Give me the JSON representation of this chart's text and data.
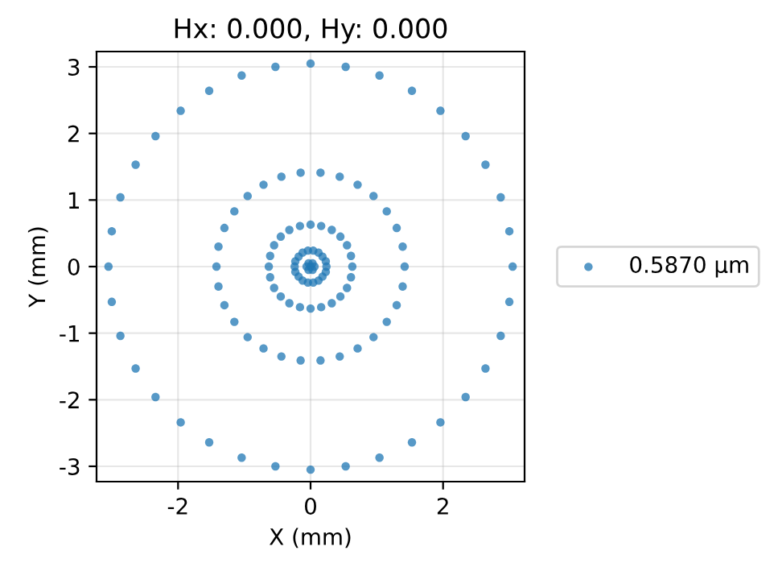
{
  "chart_data": {
    "type": "scatter",
    "title": "Hx: 0.000, Hy: 0.000",
    "xlabel": "X (mm)",
    "ylabel": "Y (mm)",
    "xlim": [
      -3.23,
      3.23
    ],
    "ylim": [
      -3.23,
      3.23
    ],
    "xticks": [
      -2,
      0,
      2
    ],
    "yticks": [
      -3,
      -2,
      -1,
      0,
      1,
      2,
      3
    ],
    "grid": true,
    "legend": "right",
    "marker": "circle",
    "series": [
      {
        "name": "0.5870 µm",
        "color": "#1f77b4",
        "x": [
          3.05,
          3.0,
          2.87,
          2.64,
          2.34,
          1.96,
          1.53,
          1.04,
          0.53,
          0,
          -0.53,
          -1.04,
          -1.53,
          -1.96,
          -2.34,
          -2.64,
          -2.87,
          -3.0,
          -3.05,
          -3.0,
          -2.87,
          -2.64,
          -2.34,
          -1.96,
          -1.53,
          -1.04,
          -0.53,
          0,
          0.53,
          1.04,
          1.53,
          1.96,
          2.34,
          2.64,
          2.87,
          3.0,
          1.42,
          1.39,
          1.3,
          1.15,
          0.95,
          0.71,
          0.44,
          0.15,
          -0.15,
          -0.44,
          -0.71,
          -0.95,
          -1.15,
          -1.3,
          -1.39,
          -1.42,
          -1.39,
          -1.3,
          -1.15,
          -0.95,
          -0.71,
          -0.44,
          -0.15,
          0.15,
          0.44,
          0.71,
          0.95,
          1.15,
          1.3,
          1.39,
          0.63,
          0.61,
          0.55,
          0.45,
          0.32,
          0.16,
          0,
          -0.16,
          -0.32,
          -0.45,
          -0.55,
          -0.61,
          -0.63,
          -0.61,
          -0.55,
          -0.45,
          -0.32,
          -0.16,
          0,
          0.16,
          0.32,
          0.45,
          0.55,
          0.61,
          0.24,
          0.23,
          0.18,
          0.12,
          0.04,
          -0.04,
          -0.12,
          -0.18,
          -0.23,
          -0.24,
          -0.23,
          -0.18,
          -0.12,
          -0.04,
          0.04,
          0.12,
          0.18,
          0.23,
          0,
          0.06,
          0.03,
          -0.03,
          -0.06,
          -0.03,
          0.03
        ],
        "values": [
          0,
          0.53,
          1.04,
          1.53,
          1.96,
          2.34,
          2.64,
          2.87,
          3.0,
          3.05,
          3.0,
          2.87,
          2.64,
          2.34,
          1.96,
          1.53,
          1.04,
          0.53,
          0,
          -0.53,
          -1.04,
          -1.53,
          -1.96,
          -2.34,
          -2.64,
          -2.87,
          -3.0,
          -3.05,
          -3.0,
          -2.87,
          -2.64,
          -2.34,
          -1.96,
          -1.53,
          -1.04,
          -0.53,
          0,
          0.3,
          0.58,
          0.83,
          1.06,
          1.23,
          1.35,
          1.41,
          1.41,
          1.35,
          1.23,
          1.06,
          0.83,
          0.58,
          0.3,
          0,
          -0.3,
          -0.58,
          -0.83,
          -1.06,
          -1.23,
          -1.35,
          -1.41,
          -1.41,
          -1.35,
          -1.23,
          -1.06,
          -0.83,
          -0.58,
          -0.3,
          0,
          0.16,
          0.32,
          0.45,
          0.55,
          0.61,
          0.63,
          0.61,
          0.55,
          0.45,
          0.32,
          0.16,
          0,
          -0.16,
          -0.32,
          -0.45,
          -0.55,
          -0.61,
          -0.63,
          -0.61,
          -0.55,
          -0.45,
          -0.32,
          -0.16,
          0,
          0.08,
          0.15,
          0.21,
          0.24,
          0.24,
          0.21,
          0.15,
          0.08,
          0,
          -0.08,
          -0.15,
          -0.21,
          -0.24,
          -0.24,
          -0.21,
          -0.15,
          -0.08,
          0,
          0,
          0.05,
          0.05,
          0,
          -0.05,
          -0.05
        ]
      }
    ]
  }
}
